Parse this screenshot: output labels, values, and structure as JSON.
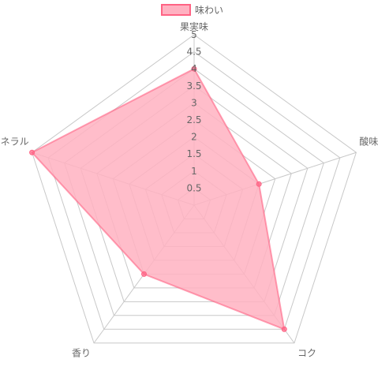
{
  "chart_data": {
    "type": "radar",
    "categories": [
      "果実味",
      "酸味",
      "コク",
      "香り",
      "ミネラル"
    ],
    "series": [
      {
        "name": "味わい",
        "values": [
          4,
          2,
          4.5,
          2.5,
          5
        ],
        "fill_color": "#ffb1c1",
        "stroke_color": "#ff6384"
      }
    ],
    "rlim": [
      0,
      5
    ],
    "ticks": [
      "0.5",
      "1",
      "1.5",
      "2",
      "2.5",
      "3",
      "3.5",
      "4",
      "4.5",
      "5"
    ],
    "legend_position": "top",
    "grid": true
  }
}
